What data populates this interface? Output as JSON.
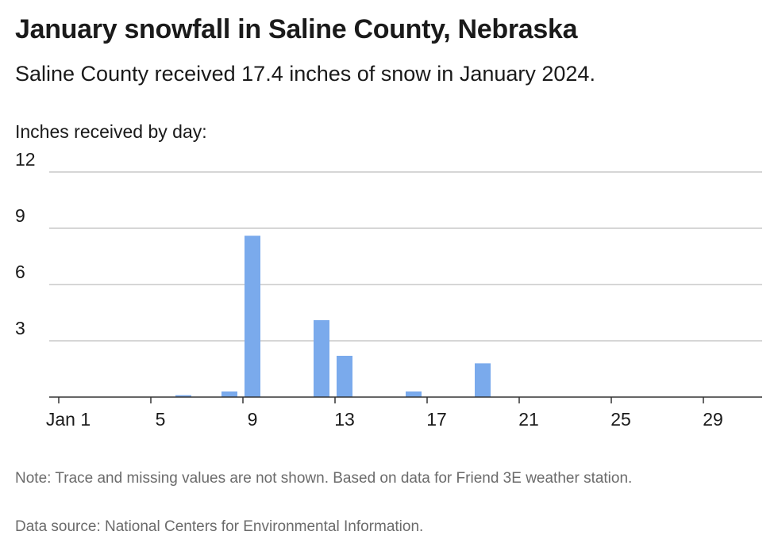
{
  "header": {
    "title": "January snowfall in Saline County, Nebraska",
    "subtitle": "Saline County received 17.4 inches of snow in January 2024."
  },
  "footer": {
    "note": "Note: Trace and missing values are not shown. Based on data for Friend 3E weather station.",
    "source": "Data source: National Centers for Environmental Information."
  },
  "colors": {
    "bar": "#7aaaec",
    "grid": "#bdbdbd",
    "axis": "#333333"
  },
  "chart_data": {
    "type": "bar",
    "ylabel": "Inches received by day:",
    "ylim": [
      0,
      12
    ],
    "yticks": [
      3,
      6,
      9,
      12
    ],
    "xlim": [
      1,
      31
    ],
    "xticks": [
      {
        "day": 1,
        "label": "Jan 1"
      },
      {
        "day": 5,
        "label": "5"
      },
      {
        "day": 9,
        "label": "9"
      },
      {
        "day": 13,
        "label": "13"
      },
      {
        "day": 17,
        "label": "17"
      },
      {
        "day": 21,
        "label": "21"
      },
      {
        "day": 25,
        "label": "25"
      },
      {
        "day": 29,
        "label": "29"
      }
    ],
    "x": [
      6,
      8,
      9,
      12,
      13,
      16,
      19
    ],
    "values": [
      0.1,
      0.3,
      8.6,
      4.1,
      2.2,
      0.3,
      1.8
    ],
    "grid": true
  }
}
